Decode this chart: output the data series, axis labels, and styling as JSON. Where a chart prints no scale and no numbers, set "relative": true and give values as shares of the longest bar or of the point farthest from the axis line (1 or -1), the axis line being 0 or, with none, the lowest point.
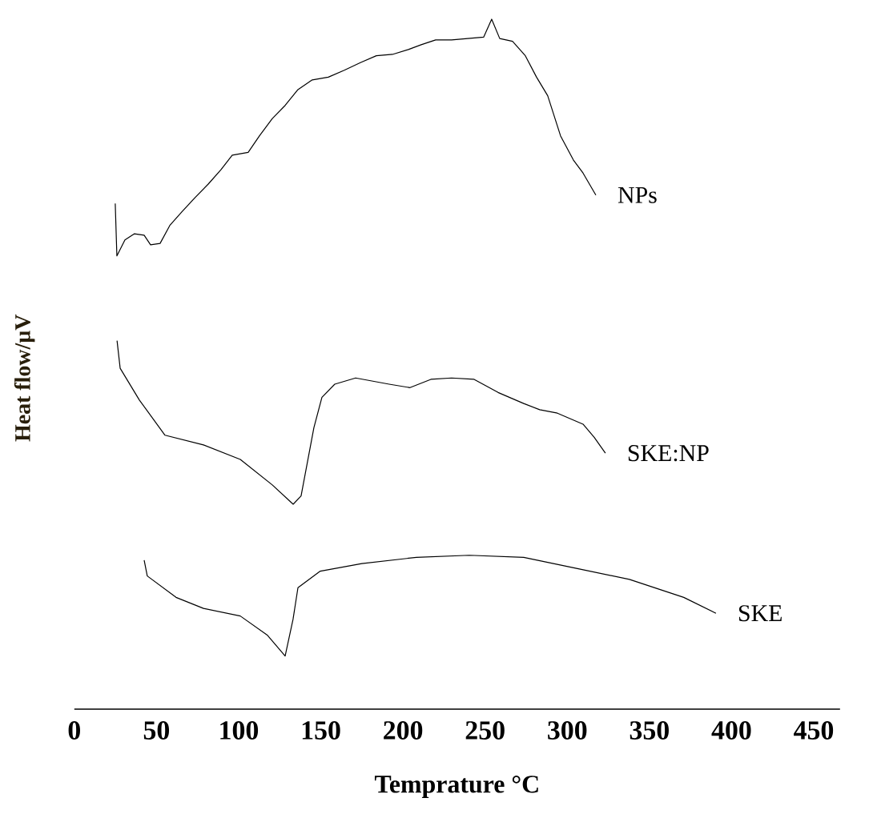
{
  "chart_data": {
    "type": "line",
    "relative": true,
    "xlabel": "Temprature °C",
    "ylabel": "Heat flow/µV",
    "xlim": [
      0,
      466
    ],
    "xticks": [
      0,
      50,
      100,
      150,
      200,
      250,
      300,
      350,
      400,
      450
    ],
    "legend": false,
    "marker": "none",
    "line_style": "solid",
    "grid": false,
    "series": [
      {
        "name": "NPs",
        "color": "#000000",
        "x": [
          24.9,
          25.9,
          30.8,
          36.6,
          42.5,
          46.4,
          52.2,
          58.1,
          65.9,
          73.7,
          81.5,
          89.3,
          96.1,
          105.8,
          112.7,
          120.5,
          128.3,
          136.1,
          144.8,
          154.6,
          164.3,
          174.1,
          183.8,
          193.6,
          203.3,
          211.1,
          219.9,
          229.6,
          239.4,
          249.1,
          254.0,
          258.9,
          266.7,
          274.5,
          281.3,
          288.1,
          295.9,
          303.7,
          309.6,
          317.4
        ],
        "values": [
          0.733,
          0.657,
          0.68,
          0.689,
          0.687,
          0.673,
          0.675,
          0.701,
          0.722,
          0.742,
          0.761,
          0.782,
          0.803,
          0.807,
          0.831,
          0.856,
          0.875,
          0.898,
          0.912,
          0.916,
          0.926,
          0.937,
          0.947,
          0.949,
          0.956,
          0.963,
          0.97,
          0.97,
          0.972,
          0.974,
          1.0,
          0.972,
          0.968,
          0.947,
          0.916,
          0.889,
          0.831,
          0.796,
          0.777,
          0.745
        ]
      },
      {
        "name": "SKE:NP",
        "color": "#000000",
        "x": [
          26.0,
          27.9,
          39.6,
          55.2,
          78.6,
          101.0,
          120.5,
          133.2,
          138.0,
          145.8,
          150.7,
          158.5,
          171.2,
          191.6,
          204.3,
          217.0,
          229.6,
          243.3,
          257.9,
          273.5,
          283.2,
          294.0,
          309.6,
          316.4,
          323.2
        ],
        "values": [
          0.534,
          0.494,
          0.448,
          0.397,
          0.383,
          0.362,
          0.325,
          0.297,
          0.309,
          0.408,
          0.452,
          0.471,
          0.48,
          0.471,
          0.466,
          0.478,
          0.48,
          0.478,
          0.459,
          0.443,
          0.434,
          0.429,
          0.413,
          0.394,
          0.371
        ]
      },
      {
        "name": "SKE",
        "color": "#000000",
        "x": [
          42.5,
          44.4,
          61.9,
          78.6,
          101.0,
          117.6,
          128.3,
          133.1,
          136.1,
          149.7,
          175.0,
          208.2,
          240.4,
          273.5,
          305.6,
          337.8,
          370.9,
          390.5
        ],
        "values": [
          0.216,
          0.193,
          0.162,
          0.146,
          0.135,
          0.107,
          0.077,
          0.13,
          0.176,
          0.2,
          0.211,
          0.22,
          0.223,
          0.22,
          0.204,
          0.188,
          0.162,
          0.139
        ]
      }
    ]
  }
}
